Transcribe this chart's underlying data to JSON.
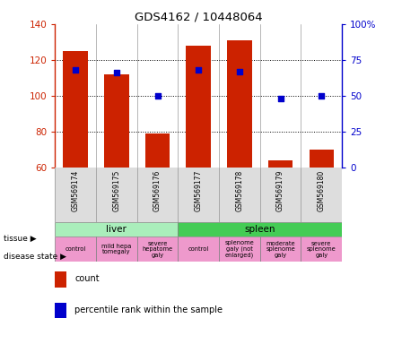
{
  "title": "GDS4162 / 10448064",
  "samples": [
    "GSM569174",
    "GSM569175",
    "GSM569176",
    "GSM569177",
    "GSM569178",
    "GSM569179",
    "GSM569180"
  ],
  "counts": [
    125,
    112,
    79,
    128,
    131,
    64,
    70
  ],
  "percentile_ranks": [
    68,
    66,
    50,
    68,
    67,
    48,
    50
  ],
  "ylim_left": [
    60,
    140
  ],
  "ylim_right": [
    0,
    100
  ],
  "yticks_left": [
    60,
    80,
    100,
    120,
    140
  ],
  "yticks_right": [
    0,
    25,
    50,
    75,
    100
  ],
  "bar_color": "#cc2200",
  "dot_color": "#0000cc",
  "tissue_liver": {
    "label": "liver",
    "cols": [
      0,
      1,
      2
    ],
    "color": "#aaeebb"
  },
  "tissue_spleen": {
    "label": "spleen",
    "cols": [
      3,
      4,
      5,
      6
    ],
    "color": "#44cc55"
  },
  "disease_states": [
    {
      "label": "control",
      "cols": [
        0
      ]
    },
    {
      "label": "mild hepa\ntomegaly",
      "cols": [
        1
      ]
    },
    {
      "label": "severe\nhepatome\ngaly",
      "cols": [
        2
      ]
    },
    {
      "label": "control",
      "cols": [
        3
      ]
    },
    {
      "label": "splenome\ngaly (not\nenlarged)",
      "cols": [
        4
      ]
    },
    {
      "label": "moderate\nsplenome\ngaly",
      "cols": [
        5
      ]
    },
    {
      "label": "severe\nsplenome\ngaly",
      "cols": [
        6
      ]
    }
  ],
  "disease_color": "#ee99cc",
  "legend_count_color": "#cc2200",
  "legend_dot_color": "#0000cc",
  "label_tissue": "tissue",
  "label_disease": "disease state",
  "figsize": [
    4.38,
    3.84
  ],
  "dpi": 100
}
